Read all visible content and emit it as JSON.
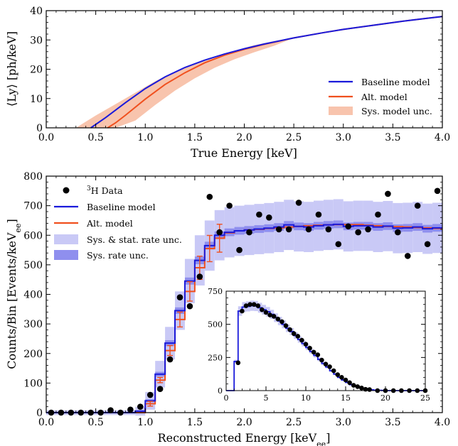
{
  "chart_data": [
    {
      "type": "line",
      "name": "light-yield",
      "xlabel": "True Energy [keV]",
      "ylabel": "⟨Ly⟩ [ph/keV]",
      "xlim": [
        0.0,
        4.0
      ],
      "ylim": [
        0,
        40
      ],
      "xticks": [
        "0.0",
        "0.5",
        "1.0",
        "1.5",
        "2.0",
        "2.5",
        "3.0",
        "3.5",
        "4.0"
      ],
      "yticks": [
        "0",
        "10",
        "20",
        "30",
        "40"
      ],
      "legend_position": "lower-right",
      "legend": [
        "Baseline model",
        "Alt. model",
        "Sys. model unc."
      ],
      "colors": {
        "baseline": "#1a1adb",
        "alt": "#f0501e",
        "band": "#f8c4ad"
      },
      "series": [
        {
          "name": "Baseline model",
          "x": [
            0.45,
            0.6,
            0.8,
            1.0,
            1.2,
            1.4,
            1.6,
            1.8,
            2.0,
            2.2,
            2.5,
            2.8,
            3.0,
            3.3,
            3.6,
            3.8,
            4.0
          ],
          "y": [
            0,
            3.5,
            8.6,
            13.4,
            17.4,
            20.6,
            23.1,
            25.2,
            27.0,
            28.6,
            30.7,
            32.5,
            33.6,
            35.0,
            36.4,
            37.2,
            38.0
          ]
        },
        {
          "name": "Alt. model",
          "x": [
            0.62,
            0.7,
            0.8,
            1.0,
            1.2,
            1.4,
            1.6,
            1.8,
            2.0,
            2.2,
            2.5,
            2.8,
            3.0,
            3.3,
            3.6,
            3.8,
            4.0
          ],
          "y": [
            0,
            1.7,
            4.3,
            9.8,
            14.8,
            18.8,
            22.2,
            24.8,
            26.8,
            28.5,
            30.7,
            32.5,
            33.6,
            35.0,
            36.4,
            37.2,
            38.0
          ]
        },
        {
          "name": "Sys. model unc.",
          "x": [
            0.3,
            0.5,
            0.7,
            0.9,
            1.1,
            1.3,
            1.5,
            1.7,
            1.9,
            2.1,
            2.3,
            2.5
          ],
          "y_low": [
            0,
            0,
            0,
            2.5,
            7.8,
            12.7,
            16.9,
            20.5,
            23.4,
            25.8,
            28.0,
            30.7
          ],
          "y_high": [
            0,
            4.2,
            8.1,
            12.0,
            15.9,
            19.2,
            21.9,
            24.3,
            26.3,
            28.2,
            29.6,
            30.7
          ]
        }
      ]
    },
    {
      "type": "line",
      "name": "spectrum",
      "xlabel": "Reconstructed Energy [keV",
      "xlabel_sub": "ee",
      "xlabel_end": "]",
      "ylabel": "Counts/Bin [Events/keV",
      "ylabel_sub": "ee",
      "ylabel_end": "]",
      "xlim": [
        0.0,
        4.0
      ],
      "ylim": [
        0,
        800
      ],
      "xticks": [
        "0.0",
        "0.5",
        "1.0",
        "1.5",
        "2.0",
        "2.5",
        "3.0",
        "3.5",
        "4.0"
      ],
      "yticks": [
        "0",
        "100",
        "200",
        "300",
        "400",
        "500",
        "600",
        "700",
        "800"
      ],
      "legend_position": "upper-left",
      "legend": [
        {
          "sup": "3",
          "text": "H Data"
        },
        {
          "text": "Baseline model"
        },
        {
          "text": "Alt. model"
        },
        {
          "text": "Sys. & stat. rate unc."
        },
        {
          "text": "Sys. rate unc."
        }
      ],
      "colors": {
        "baseline": "#1a1adb",
        "alt": "#f0501e",
        "wide_band": "#c9c9f6",
        "narrow_band": "#8f8fee",
        "data": "#000000"
      },
      "bin_edges": [
        0.0,
        0.1,
        0.2,
        0.3,
        0.4,
        0.5,
        0.6,
        0.7,
        0.8,
        0.9,
        1.0,
        1.1,
        1.2,
        1.3,
        1.4,
        1.5,
        1.6,
        1.7,
        1.8,
        1.9,
        2.0,
        2.1,
        2.2,
        2.3,
        2.4,
        2.5,
        2.6,
        2.7,
        2.8,
        2.9,
        3.0,
        3.1,
        3.2,
        3.3,
        3.4,
        3.5,
        3.6,
        3.7,
        3.8,
        3.9,
        4.0
      ],
      "baseline": [
        0,
        0,
        0,
        0,
        0,
        0,
        0,
        0,
        0,
        5,
        40,
        130,
        235,
        345,
        445,
        515,
        565,
        600,
        610,
        615,
        618,
        621,
        624,
        628,
        635,
        630,
        628,
        632,
        635,
        637,
        630,
        632,
        632,
        628,
        631,
        624,
        625,
        628,
        622,
        625
      ],
      "alt": [
        0,
        0,
        0,
        0,
        0,
        0,
        0,
        0,
        0,
        0,
        30,
        110,
        210,
        315,
        410,
        490,
        555,
        590,
        608,
        615,
        618,
        620,
        623,
        625,
        628,
        630,
        632,
        634,
        635,
        636,
        636,
        636,
        634,
        632,
        630,
        629,
        628,
        626,
        625,
        623
      ],
      "wide_band_half": [
        8,
        8,
        8,
        8,
        8,
        8,
        8,
        8,
        8,
        15,
        30,
        45,
        55,
        65,
        75,
        85,
        85,
        85,
        85,
        85,
        85,
        85,
        85,
        85,
        85,
        85,
        85,
        85,
        85,
        85,
        85,
        85,
        85,
        85,
        85,
        85,
        85,
        85,
        85,
        85
      ],
      "narrow_band_half": [
        0,
        0,
        0,
        0,
        0,
        0,
        0,
        0,
        0,
        3,
        5,
        8,
        10,
        11,
        12,
        13,
        13,
        13,
        13,
        13,
        13,
        13,
        13,
        13,
        13,
        13,
        13,
        13,
        13,
        13,
        13,
        13,
        13,
        13,
        13,
        13,
        13,
        13,
        13,
        13
      ],
      "data_points": {
        "x": [
          0.05,
          0.15,
          0.25,
          0.35,
          0.45,
          0.55,
          0.65,
          0.75,
          0.85,
          0.95,
          1.05,
          1.15,
          1.25,
          1.35,
          1.45,
          1.55,
          1.65,
          1.75,
          1.85,
          1.95,
          2.05,
          2.15,
          2.25,
          2.35,
          2.45,
          2.55,
          2.65,
          2.75,
          2.85,
          2.95,
          3.05,
          3.15,
          3.25,
          3.35,
          3.45,
          3.55,
          3.65,
          3.75,
          3.85,
          3.95
        ],
        "y": [
          0,
          0,
          0,
          0,
          0,
          0,
          8,
          0,
          10,
          20,
          60,
          80,
          180,
          390,
          360,
          460,
          730,
          610,
          700,
          550,
          610,
          670,
          660,
          620,
          620,
          710,
          620,
          670,
          620,
          570,
          630,
          610,
          620,
          670,
          740,
          610,
          530,
          700,
          570,
          750
        ]
      },
      "inset": {
        "xlim": [
          0,
          25
        ],
        "ylim": [
          0,
          750
        ],
        "xticks": [
          "0",
          "5",
          "10",
          "15",
          "20",
          "25"
        ],
        "yticks": [
          "0",
          "250",
          "500",
          "750"
        ],
        "bin_width": 0.5,
        "model": [
          0,
          0,
          220,
          600,
          630,
          635,
          640,
          638,
          625,
          610,
          595,
          575,
          550,
          525,
          500,
          470,
          445,
          415,
          385,
          355,
          325,
          295,
          265,
          235,
          205,
          178,
          150,
          125,
          100,
          80,
          62,
          45,
          32,
          22,
          14,
          9,
          6,
          3,
          2,
          1,
          0,
          0,
          0,
          0,
          0,
          0,
          0,
          0,
          0,
          0
        ],
        "data_points": {
          "x": [
            1.5,
            2.0,
            2.5,
            3.0,
            3.5,
            4.0,
            4.5,
            5.0,
            5.5,
            6.0,
            6.5,
            7.0,
            7.5,
            8.0,
            8.5,
            9.0,
            9.5,
            10.0,
            10.5,
            11.0,
            11.5,
            12.0,
            12.5,
            13.0,
            13.5,
            14.0,
            14.5,
            15.0,
            15.5,
            16.0,
            16.5,
            17.0,
            17.5,
            18.0,
            19.0,
            20.0,
            21.0,
            22.0,
            23.0,
            24.0,
            25.0
          ],
          "y": [
            210,
            600,
            640,
            650,
            650,
            640,
            610,
            590,
            570,
            560,
            540,
            520,
            490,
            460,
            430,
            410,
            380,
            350,
            320,
            290,
            270,
            230,
            200,
            180,
            150,
            120,
            100,
            80,
            60,
            40,
            30,
            20,
            10,
            8,
            0,
            0,
            0,
            0,
            0,
            0,
            0
          ]
        }
      }
    }
  ]
}
